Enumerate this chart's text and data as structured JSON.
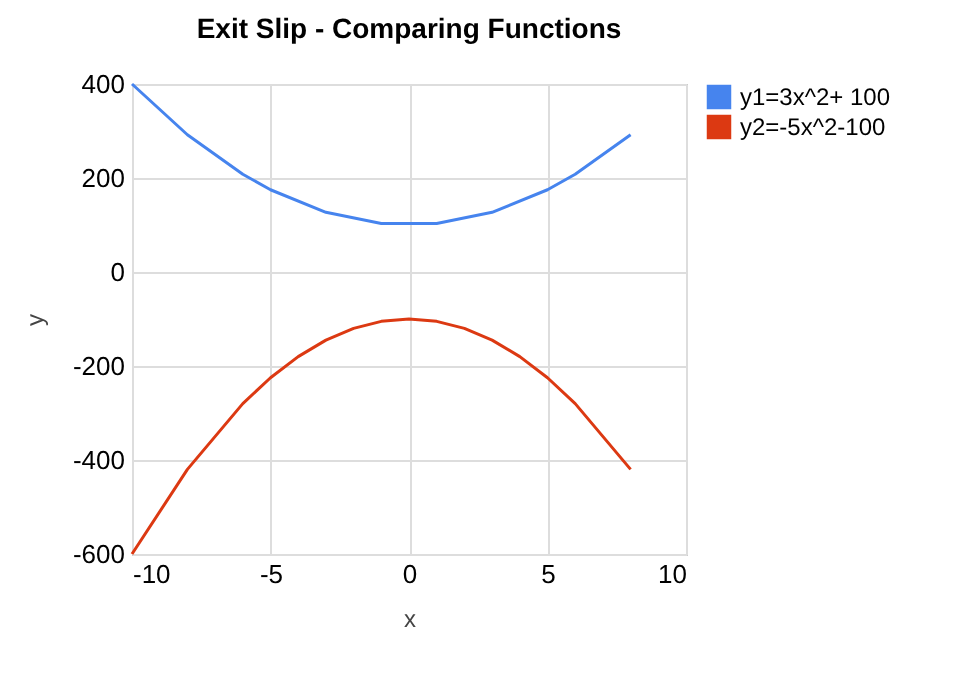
{
  "chart_data": {
    "type": "line",
    "title": "Exit Slip - Comparing Functions",
    "xlabel": "x",
    "ylabel": "y",
    "xlim": [
      -10,
      10
    ],
    "xticks": [
      -10,
      -5,
      0,
      5,
      10
    ],
    "ylim": [
      -600,
      400
    ],
    "yticks": [
      -600,
      -400,
      -200,
      0,
      200,
      400
    ],
    "grid": true,
    "legend": "right",
    "series": [
      {
        "name": "y1=3x^2+ 100",
        "color": "#4684ee",
        "x": [
          -10,
          -8,
          -6,
          -5,
          -3,
          -1,
          1,
          3,
          5,
          6,
          8
        ],
        "values": [
          400,
          292,
          208,
          175,
          127,
          103,
          103,
          127,
          175,
          208,
          292
        ]
      },
      {
        "name": "y2=-5x^2-100",
        "color": "#dc3912",
        "x": [
          -10,
          -8,
          -6,
          -5,
          -4,
          -3,
          -2,
          -1,
          0,
          1,
          2,
          3,
          4,
          5,
          6,
          8
        ],
        "values": [
          -600,
          -420,
          -280,
          -225,
          -180,
          -145,
          -120,
          -105,
          -100,
          -105,
          -120,
          -145,
          -180,
          -225,
          -280,
          -420
        ]
      }
    ]
  }
}
